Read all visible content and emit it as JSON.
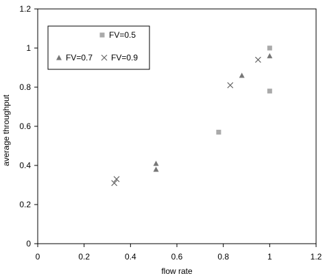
{
  "chart_data": {
    "type": "scatter",
    "title": "",
    "xlabel": "flow rate",
    "ylabel": "average throughput",
    "xlim": [
      0,
      1.2
    ],
    "ylim": [
      0,
      1.2
    ],
    "x_ticks": [
      "0",
      "0.2",
      "0.4",
      "0.6",
      "0.8",
      "1",
      "1.2"
    ],
    "y_ticks": [
      "0",
      "0.2",
      "0.4",
      "0.6",
      "0.8",
      "1",
      "1.2"
    ],
    "grid": false,
    "legend_position": "top-left",
    "series": [
      {
        "name": "FV=0.5",
        "marker": "square",
        "color": "#aaaaaa",
        "points": [
          [
            0.78,
            0.57
          ],
          [
            1.0,
            1.0
          ],
          [
            1.0,
            0.78
          ]
        ]
      },
      {
        "name": "FV=0.7",
        "marker": "triangle",
        "color": "#777777",
        "points": [
          [
            0.51,
            0.41
          ],
          [
            0.51,
            0.38
          ],
          [
            0.88,
            0.86
          ],
          [
            1.0,
            0.96
          ]
        ]
      },
      {
        "name": "FV=0.9",
        "marker": "x",
        "color": "#666666",
        "points": [
          [
            0.33,
            0.31
          ],
          [
            0.34,
            0.33
          ],
          [
            0.83,
            0.81
          ],
          [
            0.95,
            0.94
          ]
        ]
      }
    ]
  }
}
